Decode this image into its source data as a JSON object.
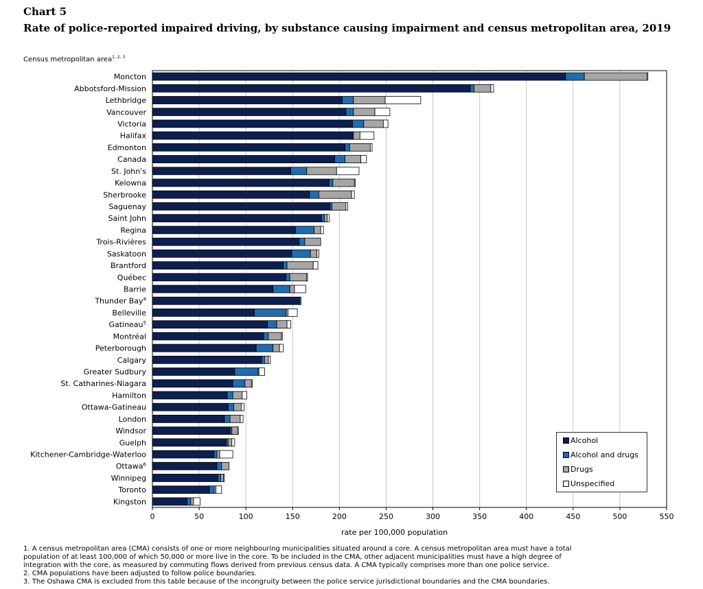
{
  "header": {
    "chart_number": "Chart 5",
    "title": "Rate of police-reported impaired driving, by substance causing impairment and census metropolitan area, 2019",
    "y_axis_label": "Census metropolitan area",
    "y_axis_label_sup": "1, 2, 3"
  },
  "legend": {
    "items": [
      "Alcohol",
      "Alcohol and drugs",
      "Drugs",
      "Unspecified"
    ]
  },
  "colors": {
    "alcohol": "#0d1f4f",
    "alcohol_and_drugs": "#1f6db0",
    "drugs": "#a6a6a6",
    "unspecified": "#ffffff",
    "grid": "#c8c8c8"
  },
  "footnotes": [
    "1. A census metropolitan area (CMA) consists of one or more neighbouring municipalities situated around a core. A census metropolitan area must have a total",
    "population of at least 100,000 of which 50,000 or more live in the core. To be included in the CMA, other adjacent municipalities must have a high degree of",
    "integration with the core, as measured by commuting flows derived from previous census data. A CMA typically comprises more than one police service.",
    "2. CMA populations have been adjusted to follow police boundaries.",
    "3. The Oshawa CMA is excluded from this table because of the incongruity between the police service jurisdictional boundaries and the CMA boundaries."
  ],
  "chart_data": {
    "type": "bar",
    "orientation": "horizontal",
    "stacked": true,
    "title": "Rate of police-reported impaired driving, by substance causing impairment and census metropolitan area, 2019",
    "xlabel": "rate per 100,000 population",
    "ylabel": "Census metropolitan area",
    "xlim": [
      0,
      550
    ],
    "xticks": [
      0,
      50,
      100,
      150,
      200,
      250,
      300,
      350,
      400,
      450,
      500,
      550
    ],
    "grid": "vertical",
    "legend_position": "bottom-right",
    "categories": [
      "Moncton",
      "Abbotsford-Mission",
      "Lethbridge",
      "Vancouver",
      "Victoria",
      "Halifax",
      "Edmonton",
      "Canada",
      "St. John's",
      "Kelowna",
      "Sherbrooke",
      "Saguenay",
      "Saint John",
      "Regina",
      "Trois-Rivières",
      "Saskatoon",
      "Brantford",
      "Québec",
      "Barrie",
      "Thunder Bay",
      "Belleville",
      "Gatineau",
      "Montréal",
      "Peterborough",
      "Calgary",
      "Greater Sudbury",
      "St. Catharines-Niagara",
      "Hamilton",
      "Ottawa-Gatineau",
      "London",
      "Windsor",
      "Guelph",
      "Kitchener-Cambridge-Waterloo",
      "Ottawa",
      "Winnipeg",
      "Toronto",
      "Kingston"
    ],
    "category_superscripts": {
      "Thunder Bay": "4",
      "Gatineau": "5",
      "Ottawa": "6"
    },
    "series": [
      {
        "name": "Alcohol",
        "values": [
          442,
          340,
          203,
          207,
          214,
          215,
          206,
          195,
          148,
          189,
          168,
          190,
          181,
          153,
          157,
          149,
          140,
          143,
          129,
          158,
          109,
          123,
          119,
          111,
          117,
          88,
          86,
          80,
          81,
          77,
          83,
          79,
          66,
          69,
          70,
          61,
          37
        ]
      },
      {
        "name": "Alcohol and drugs",
        "values": [
          20,
          4,
          12,
          8,
          12,
          0,
          5,
          11,
          17,
          4,
          10,
          2,
          3,
          20,
          6,
          20,
          4,
          4,
          18,
          0,
          34,
          10,
          5,
          18,
          3,
          25,
          13,
          6,
          6,
          6,
          2,
          2,
          3,
          5,
          3,
          5,
          4
        ]
      },
      {
        "name": "Drugs",
        "values": [
          67,
          18,
          34,
          23,
          21,
          7,
          22,
          17,
          32,
          23,
          35,
          15,
          3,
          7,
          17,
          7,
          28,
          18,
          5,
          0,
          2,
          11,
          14,
          7,
          4,
          1,
          7,
          10,
          8,
          11,
          6,
          4,
          3,
          8,
          3,
          2,
          3
        ]
      },
      {
        "name": "Unspecified",
        "values": [
          1,
          3,
          38,
          16,
          5,
          15,
          2,
          6,
          24,
          1,
          3,
          2,
          2,
          3,
          0,
          2,
          5,
          1,
          12,
          1,
          10,
          4,
          1,
          4,
          2,
          6,
          1,
          5,
          3,
          3,
          1,
          3,
          14,
          0,
          1,
          6,
          7
        ]
      }
    ]
  }
}
